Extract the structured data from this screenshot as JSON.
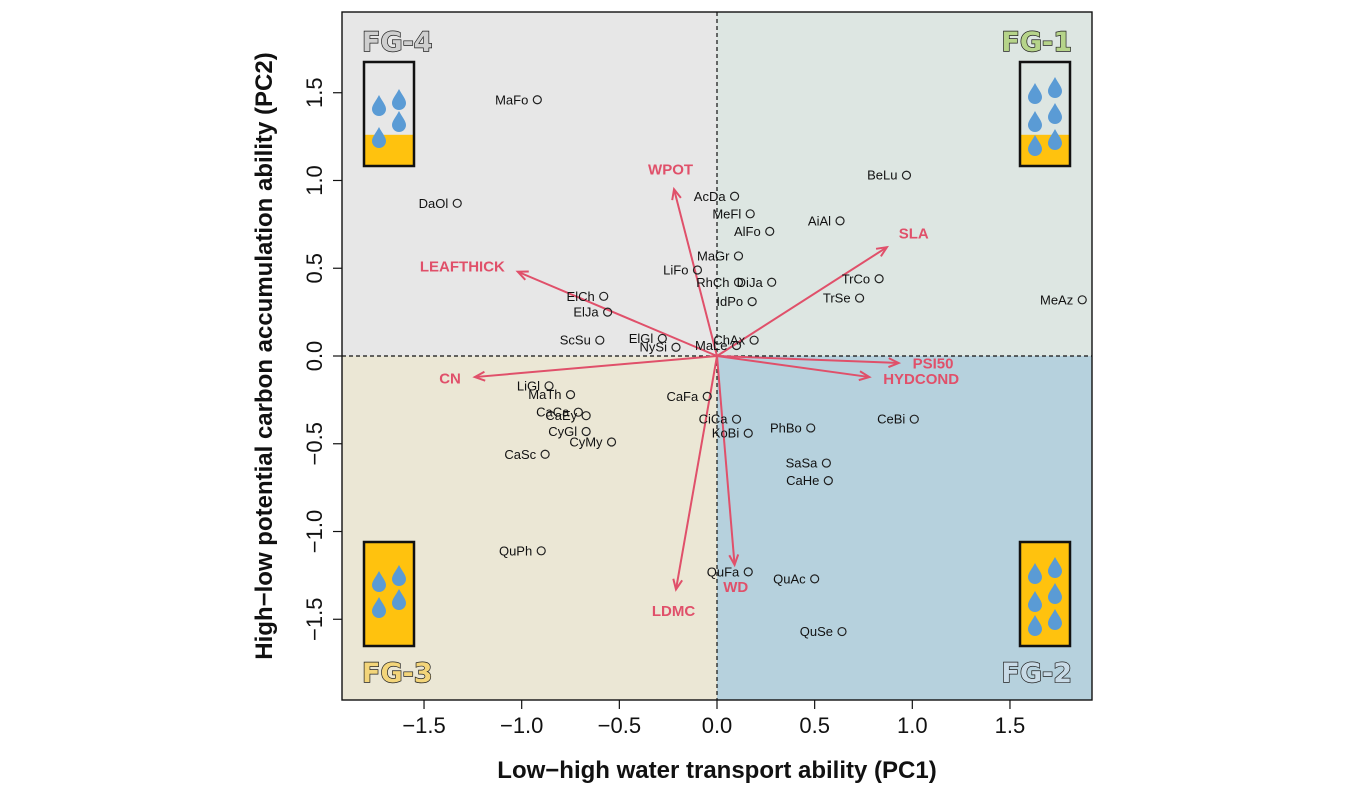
{
  "chart_data": {
    "type": "scatter",
    "xlabel": "Low−high water transport ability (PC1)",
    "ylabel": "High−low potential carbon accumulation ability (PC2)",
    "xlim": [
      -1.92,
      1.92
    ],
    "ylim": [
      -1.96,
      1.96
    ],
    "x_ticks": [
      -1.5,
      -1.0,
      -0.5,
      0.0,
      0.5,
      1.0,
      1.5
    ],
    "x_tick_labels": [
      "−1.5",
      "−1.0",
      "−0.5",
      "0.0",
      "0.5",
      "1.0",
      "1.5"
    ],
    "y_ticks": [
      -1.5,
      -1.0,
      -0.5,
      0.0,
      0.5,
      1.0,
      1.5
    ],
    "y_tick_labels": [
      "−1.5",
      "−1.0",
      "−0.5",
      "0.0",
      "0.5",
      "1.0",
      "1.5"
    ],
    "grid": false,
    "quadrants": [
      {
        "name": "FG-4",
        "quadrant": "top-left",
        "color": "#e7e7e7",
        "label_color": "#cfcfcf",
        "fill_fraction": 0.3
      },
      {
        "name": "FG-1",
        "quadrant": "top-right",
        "color": "#dde6e2",
        "label_color": "#b6d48a",
        "fill_fraction": 0.3
      },
      {
        "name": "FG-3",
        "quadrant": "bottom-left",
        "color": "#ebe7d5",
        "label_color": "#f3d57a",
        "fill_fraction": 1.0
      },
      {
        "name": "FG-2",
        "quadrant": "bottom-right",
        "color": "#b6d1dd",
        "label_color": "#c9dbe7",
        "fill_fraction": 1.0
      }
    ],
    "points": [
      {
        "label": "MaFo",
        "x": -0.92,
        "y": 1.46
      },
      {
        "label": "DaOl",
        "x": -1.33,
        "y": 0.87
      },
      {
        "label": "BeLu",
        "x": 0.97,
        "y": 1.03
      },
      {
        "label": "AcDa",
        "x": 0.09,
        "y": 0.91
      },
      {
        "label": "MeFl",
        "x": 0.17,
        "y": 0.81
      },
      {
        "label": "AiAl",
        "x": 0.63,
        "y": 0.77
      },
      {
        "label": "AlFo",
        "x": 0.27,
        "y": 0.71
      },
      {
        "label": "MaGr",
        "x": 0.11,
        "y": 0.57
      },
      {
        "label": "LiFo",
        "x": -0.1,
        "y": 0.49
      },
      {
        "label": "RhCh",
        "x": 0.11,
        "y": 0.42
      },
      {
        "label": "DiJa",
        "x": 0.28,
        "y": 0.42
      },
      {
        "label": "TrCo",
        "x": 0.83,
        "y": 0.44
      },
      {
        "label": "ElCh",
        "x": -0.58,
        "y": 0.34
      },
      {
        "label": "IdPo",
        "x": 0.18,
        "y": 0.31
      },
      {
        "label": "TrSe",
        "x": 0.73,
        "y": 0.33
      },
      {
        "label": "MeAz",
        "x": 1.87,
        "y": 0.32
      },
      {
        "label": "ElJa",
        "x": -0.56,
        "y": 0.25
      },
      {
        "label": "ScSu",
        "x": -0.6,
        "y": 0.09
      },
      {
        "label": "ElGl",
        "x": -0.28,
        "y": 0.1
      },
      {
        "label": "NySi",
        "x": -0.21,
        "y": 0.05
      },
      {
        "label": "MaLe",
        "x": 0.1,
        "y": 0.06
      },
      {
        "label": "ChAx",
        "x": 0.19,
        "y": 0.09
      },
      {
        "label": "LiGl",
        "x": -0.86,
        "y": -0.17
      },
      {
        "label": "MaTh",
        "x": -0.75,
        "y": -0.22
      },
      {
        "label": "CaFa",
        "x": -0.05,
        "y": -0.23
      },
      {
        "label": "CaCa",
        "x": -0.71,
        "y": -0.32
      },
      {
        "label": "CaEy",
        "x": -0.67,
        "y": -0.34
      },
      {
        "label": "CiCa",
        "x": 0.1,
        "y": -0.36
      },
      {
        "label": "CeBi",
        "x": 1.01,
        "y": -0.36
      },
      {
        "label": "PhBo",
        "x": 0.48,
        "y": -0.41
      },
      {
        "label": "CyGl",
        "x": -0.67,
        "y": -0.43
      },
      {
        "label": "KoBi",
        "x": 0.16,
        "y": -0.44
      },
      {
        "label": "CyMy",
        "x": -0.54,
        "y": -0.49
      },
      {
        "label": "CaSc",
        "x": -0.88,
        "y": -0.56
      },
      {
        "label": "SaSa",
        "x": 0.56,
        "y": -0.61
      },
      {
        "label": "CaHe",
        "x": 0.57,
        "y": -0.71
      },
      {
        "label": "QuPh",
        "x": -0.9,
        "y": -1.11
      },
      {
        "label": "QuFa",
        "x": 0.16,
        "y": -1.23
      },
      {
        "label": "QuAc",
        "x": 0.5,
        "y": -1.27
      },
      {
        "label": "QuSe",
        "x": 0.64,
        "y": -1.57
      }
    ],
    "vectors": [
      {
        "label": "WPOT",
        "x": -0.22,
        "y": 0.95
      },
      {
        "label": "SLA",
        "x": 0.87,
        "y": 0.62
      },
      {
        "label": "LEAFTHICK",
        "x": -1.02,
        "y": 0.48
      },
      {
        "label": "PSI50",
        "x": 0.93,
        "y": -0.04
      },
      {
        "label": "CN",
        "x": -1.24,
        "y": -0.12
      },
      {
        "label": "HYDCOND",
        "x": 0.78,
        "y": -0.12
      },
      {
        "label": "WD",
        "x": 0.09,
        "y": -1.19
      },
      {
        "label": "LDMC",
        "x": -0.21,
        "y": -1.33
      }
    ],
    "colors": {
      "points": "#222222",
      "vectors": "#e0506a",
      "water_drop": "#5a9bd5",
      "soil_fill": "#ffc20e"
    }
  }
}
